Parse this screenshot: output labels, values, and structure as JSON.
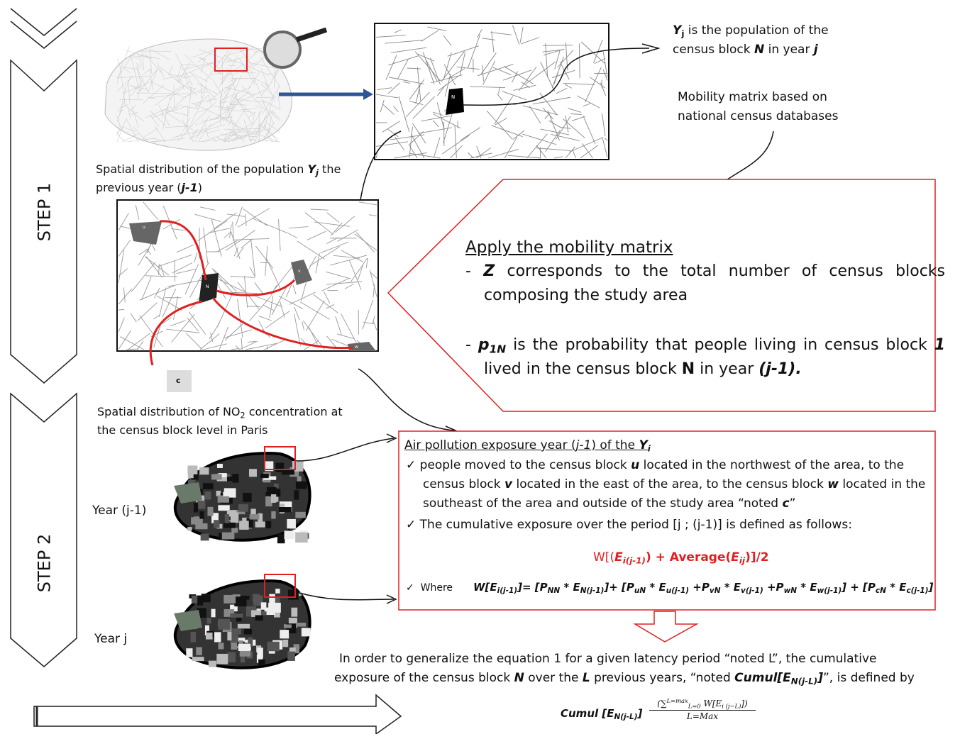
{
  "steps": [
    "STEP 1",
    "STEP 2"
  ],
  "population_note": [
    "Y",
    "j",
    " is the population of the",
    "census block ",
    "N",
    " in year ",
    "j"
  ],
  "mobility_matrix_note": [
    "Mobility matrix based on",
    "national census databases"
  ],
  "zoom_map_label": "N",
  "step1_caption": [
    "Spatial distribution of the population ",
    "Y",
    "j",
    " the",
    "previous year (",
    "j-1",
    ")"
  ],
  "mobility_map_labels": [
    "u",
    "v",
    "N",
    "w",
    "c"
  ],
  "apply_box": {
    "title": "Apply the mobility matrix",
    "bullet1": [
      "- ",
      "Z",
      " corresponds to the total number of census blocks composing the study area"
    ],
    "bullet2": [
      "- ",
      "p",
      "1N",
      " is the probability that people living in census block ",
      "1",
      " lived in the census block ",
      "N",
      " in year ",
      "(j-1)."
    ]
  },
  "step2_caption": [
    "Spatial distribution of NO",
    "2",
    " concentration at",
    "the census block level in Paris"
  ],
  "year_labels": [
    "Year (j-1)",
    "Year j"
  ],
  "exposure_box": {
    "title": [
      "Air pollution exposure year (",
      "j-1",
      ") of the ",
      "Y",
      "i"
    ],
    "item1": [
      "people moved to the census block ",
      "u",
      " located in the northwest of the area, to the census block ",
      "v",
      " located in the east of the area, to the census block ",
      "w",
      " located in the southeast of the area and outside of the study area “noted ",
      "c",
      "”"
    ],
    "item2": "The cumulative exposure over the period [j ; (j-1)] is defined as follows:",
    "formula": [
      "W[(",
      "E",
      "i(j-1)",
      ") + Average(",
      "E",
      "ij",
      ")]/2"
    ],
    "where_label": "Where",
    "where_equation": [
      "W[E",
      "i(j-1)",
      "]= [P",
      "NN",
      " * E",
      "N(j-1)",
      "]+ [P",
      "uN",
      " * E",
      "u(j-1)",
      " +P",
      "vN",
      " * E",
      "v(j-1)",
      " +P",
      "wN",
      " * E",
      "w(j-1)",
      "] + [P",
      "cN",
      " * E",
      "c(j-1)",
      "]"
    ]
  },
  "generalization": {
    "line1": "In order to generalize the equation 1 for a given latency period “noted L”, the cumulative",
    "line2": [
      "exposure of the census block ",
      "N",
      " over the ",
      "L",
      " previous years, “noted ",
      "Cumul[E",
      "N(j-L)",
      "]",
      "”, is defined by"
    ]
  },
  "cumul_formula": {
    "left": [
      "Cumul [E",
      "N(j-L)",
      "]"
    ],
    "numerator": [
      "(∑",
      "L=max",
      "L=0",
      " W[E",
      "i (j−L)",
      "])"
    ],
    "denominator": "L=Max"
  }
}
